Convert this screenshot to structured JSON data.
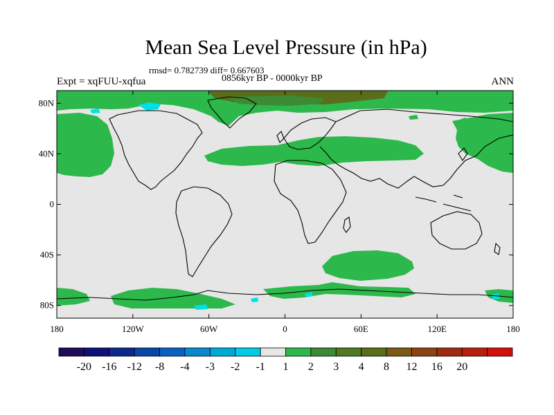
{
  "map": {
    "title": "Mean Sea Level Pressure (in hPa)",
    "stats_line": "rmsd= 0.782739 diff= 0.667603",
    "period_line": "0856kyr BP - 0000kyr BP",
    "experiment_label": "Expt = xqFUU-xqfua",
    "season_label": "ANN",
    "lat_labels": [
      "80N",
      "40N",
      "0",
      "40S",
      "80S"
    ],
    "lon_labels": [
      "180",
      "120W",
      "60W",
      "0",
      "60E",
      "120E",
      "180"
    ],
    "colors": {
      "background": "#e6e6e6",
      "positive_1_2": "#2db84b",
      "positive_2_3": "#3d8a35",
      "positive_3_4": "#5a6d1a",
      "negative_2_1": "#00e0e8",
      "coastline": "#000000"
    }
  },
  "colorbar": {
    "colors": [
      "#1e0c5a",
      "#10107a",
      "#0a2a8c",
      "#0a46a8",
      "#0a62c0",
      "#0a88cc",
      "#00aad8",
      "#00cce6",
      "#e6e6e6",
      "#2db84b",
      "#3d8a35",
      "#4f7a22",
      "#5a6d1a",
      "#7a5a14",
      "#8c4212",
      "#a02a10",
      "#b81e10",
      "#d2120a"
    ],
    "tick_labels": [
      "-20",
      "-16",
      "-12",
      "-8",
      "-4",
      "-3",
      "-2",
      "-1",
      "1",
      "2",
      "3",
      "4",
      "8",
      "12",
      "16",
      "20"
    ]
  }
}
